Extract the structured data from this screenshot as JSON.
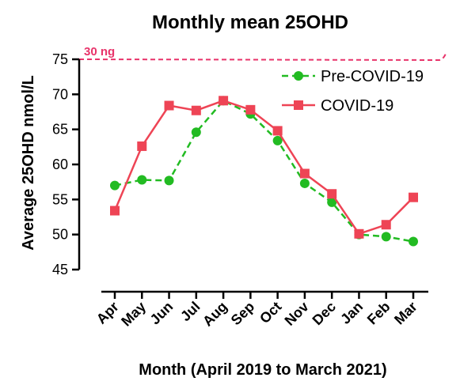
{
  "chart_data": {
    "type": "line",
    "title": "Monthly mean 25OHD",
    "xlabel": "Month (April 2019 to March 2021)",
    "ylabel": "Average 25OHD nmol/L",
    "ylim": [
      45,
      75
    ],
    "yticks": [
      "45",
      "50",
      "55",
      "60",
      "65",
      "70",
      "75"
    ],
    "categories": [
      "Apr",
      "May",
      "Jun",
      "Jul",
      "Aug",
      "Sep",
      "Oct",
      "Nov",
      "Dec",
      "Jan",
      "Feb",
      "Mar"
    ],
    "series": [
      {
        "name": "Pre-COVID-19",
        "color": "#22bb22",
        "line_style": "dashed",
        "marker": "circle",
        "values": [
          57.0,
          57.8,
          57.7,
          64.6,
          69.1,
          67.2,
          63.4,
          57.3,
          54.6,
          50.0,
          49.7,
          49.0
        ]
      },
      {
        "name": "COVID-19",
        "color": "#ee4455",
        "line_style": "solid",
        "marker": "square",
        "values": [
          53.4,
          62.6,
          68.4,
          67.7,
          69.1,
          67.8,
          64.8,
          58.7,
          55.8,
          50.1,
          51.4,
          55.3
        ]
      }
    ],
    "reference_line": {
      "label": "30 ng",
      "value": 75,
      "color": "#e8336a",
      "line_style": "dashed"
    },
    "legend_position": "top-right",
    "grid": false
  }
}
